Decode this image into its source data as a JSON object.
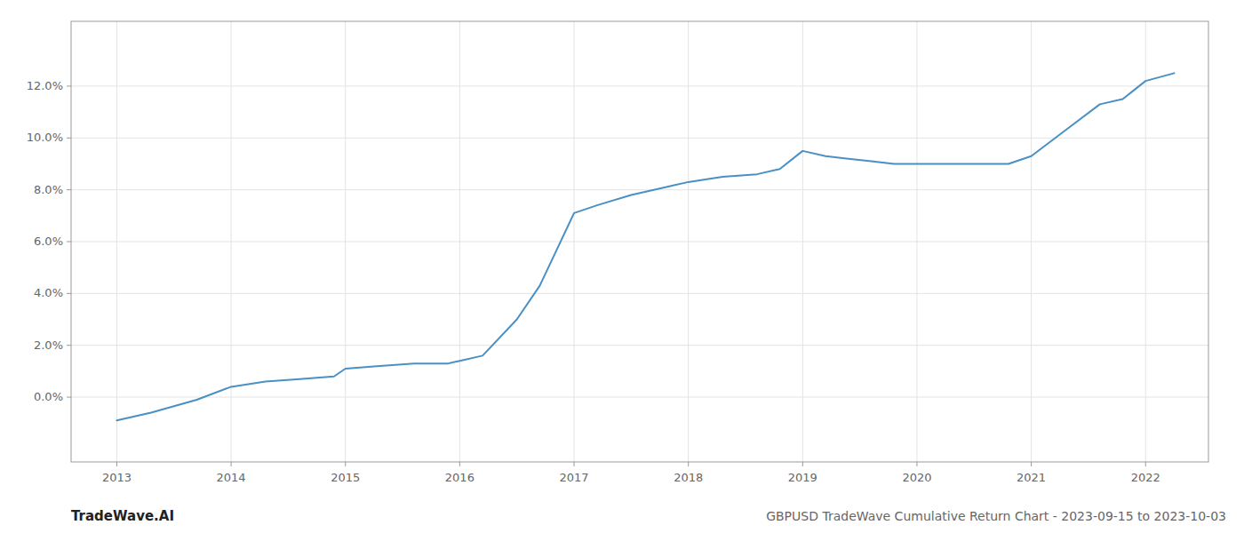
{
  "chart_data": {
    "type": "line",
    "title": "GBPUSD TradeWave Cumulative Return Chart - 2023-09-15 to 2023-10-03",
    "watermark": "TradeWave.AI",
    "color": "#4a90c4",
    "grid": true,
    "x": [
      2013.0,
      2013.3,
      2013.7,
      2014.0,
      2014.3,
      2014.6,
      2014.9,
      2015.0,
      2015.3,
      2015.6,
      2015.9,
      2016.0,
      2016.2,
      2016.5,
      2016.7,
      2017.0,
      2017.2,
      2017.5,
      2017.8,
      2018.0,
      2018.3,
      2018.6,
      2018.8,
      2019.0,
      2019.2,
      2019.4,
      2019.6,
      2019.8,
      2020.0,
      2020.3,
      2020.6,
      2020.8,
      2021.0,
      2021.3,
      2021.6,
      2021.8,
      2022.0,
      2022.25
    ],
    "values": [
      -0.009,
      -0.006,
      -0.001,
      0.004,
      0.006,
      0.007,
      0.008,
      0.011,
      0.012,
      0.013,
      0.013,
      0.014,
      0.016,
      0.03,
      0.043,
      0.071,
      0.074,
      0.078,
      0.081,
      0.083,
      0.085,
      0.086,
      0.088,
      0.095,
      0.093,
      0.092,
      0.091,
      0.09,
      0.09,
      0.09,
      0.09,
      0.09,
      0.093,
      0.103,
      0.113,
      0.115,
      0.122,
      0.125
    ],
    "xlim": [
      2012.6,
      2022.55
    ],
    "ylim": [
      -0.025,
      0.145
    ],
    "xticks": [
      2013,
      2014,
      2015,
      2016,
      2017,
      2018,
      2019,
      2020,
      2021,
      2022
    ],
    "yticks": [
      {
        "value": 0.0,
        "label": "0.0%"
      },
      {
        "value": 0.02,
        "label": "2.0%"
      },
      {
        "value": 0.04,
        "label": "4.0%"
      },
      {
        "value": 0.06,
        "label": "6.0%"
      },
      {
        "value": 0.08,
        "label": "8.0%"
      },
      {
        "value": 0.1,
        "label": "10.0%"
      },
      {
        "value": 0.12,
        "label": "12.0%"
      }
    ]
  }
}
